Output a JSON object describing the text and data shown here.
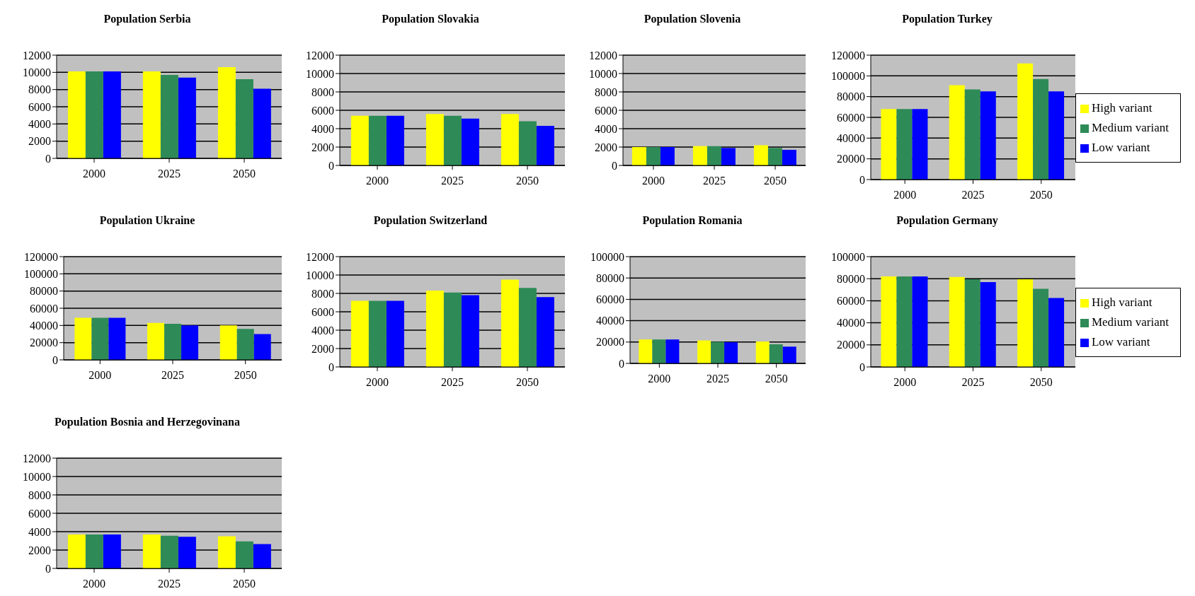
{
  "chart_data": [
    {
      "type": "bar",
      "title": "Population  Serbia",
      "categories": [
        "2000",
        "2025",
        "2050"
      ],
      "ylim": [
        0,
        12000
      ],
      "yticks": [
        0,
        2000,
        4000,
        6000,
        8000,
        10000,
        12000
      ],
      "grid": "y",
      "legend": false,
      "series": [
        {
          "color": "#ffff00",
          "values": [
            10100,
            10100,
            10600
          ]
        },
        {
          "color": "#2e8b57",
          "values": [
            10100,
            9700,
            9200
          ]
        },
        {
          "color": "#0000ff",
          "values": [
            10100,
            9400,
            8100
          ]
        }
      ]
    },
    {
      "type": "bar",
      "title": "Population  Slovakia",
      "categories": [
        "2000",
        "2025",
        "2050"
      ],
      "ylim": [
        0,
        12000
      ],
      "yticks": [
        0,
        2000,
        4000,
        6000,
        8000,
        10000,
        12000
      ],
      "grid": "y",
      "legend": false,
      "series": [
        {
          "color": "#ffff00",
          "values": [
            5400,
            5600,
            5600
          ]
        },
        {
          "color": "#2e8b57",
          "values": [
            5400,
            5400,
            4800
          ]
        },
        {
          "color": "#0000ff",
          "values": [
            5400,
            5100,
            4300
          ]
        }
      ]
    },
    {
      "type": "bar",
      "title": "Population  Slovenia",
      "categories": [
        "2000",
        "2025",
        "2050"
      ],
      "ylim": [
        0,
        12000
      ],
      "yticks": [
        0,
        2000,
        4000,
        6000,
        8000,
        10000,
        12000
      ],
      "grid": "y",
      "legend": false,
      "series": [
        {
          "color": "#ffff00",
          "values": [
            2000,
            2100,
            2200
          ]
        },
        {
          "color": "#2e8b57",
          "values": [
            2000,
            2100,
            1900
          ]
        },
        {
          "color": "#0000ff",
          "values": [
            2000,
            1900,
            1700
          ]
        }
      ]
    },
    {
      "type": "bar",
      "title": "Population  Turkey",
      "categories": [
        "2000",
        "2025",
        "2050"
      ],
      "ylim": [
        0,
        120000
      ],
      "yticks": [
        0,
        20000,
        40000,
        60000,
        80000,
        100000,
        120000
      ],
      "grid": "y",
      "legend": "right",
      "series": [
        {
          "name": "High variant",
          "color": "#ffff00",
          "values": [
            68000,
            91000,
            112000
          ]
        },
        {
          "name": "Medium variant",
          "color": "#2e8b57",
          "values": [
            68000,
            87000,
            97000
          ]
        },
        {
          "name": "Low variant",
          "color": "#0000ff",
          "values": [
            68000,
            85000,
            85000
          ]
        }
      ]
    },
    {
      "type": "bar",
      "title": "Population  Ukraine",
      "categories": [
        "2000",
        "2025",
        "2050"
      ],
      "ylim": [
        0,
        120000
      ],
      "yticks": [
        0,
        20000,
        40000,
        60000,
        80000,
        100000,
        120000
      ],
      "grid": "y",
      "legend": false,
      "series": [
        {
          "color": "#ffff00",
          "values": [
            49000,
            43000,
            40000
          ]
        },
        {
          "color": "#2e8b57",
          "values": [
            49000,
            42000,
            36000
          ]
        },
        {
          "color": "#0000ff",
          "values": [
            49000,
            40000,
            30000
          ]
        }
      ]
    },
    {
      "type": "bar",
      "title": "Population  Switzerland",
      "categories": [
        "2000",
        "2025",
        "2050"
      ],
      "ylim": [
        0,
        12000
      ],
      "yticks": [
        0,
        2000,
        4000,
        6000,
        8000,
        10000,
        12000
      ],
      "grid": "y",
      "legend": false,
      "series": [
        {
          "color": "#ffff00",
          "values": [
            7200,
            8300,
            9500
          ]
        },
        {
          "color": "#2e8b57",
          "values": [
            7200,
            8100,
            8600
          ]
        },
        {
          "color": "#0000ff",
          "values": [
            7200,
            7800,
            7600
          ]
        }
      ]
    },
    {
      "type": "bar",
      "title": "Population  Romania",
      "categories": [
        "2000",
        "2025",
        "2050"
      ],
      "ylim": [
        0,
        100000
      ],
      "yticks": [
        0,
        20000,
        40000,
        60000,
        80000,
        100000
      ],
      "grid": "y",
      "legend": false,
      "series": [
        {
          "color": "#ffff00",
          "values": [
            22400,
            21500,
            20500
          ]
        },
        {
          "color": "#2e8b57",
          "values": [
            22400,
            20200,
            17900
          ]
        },
        {
          "color": "#0000ff",
          "values": [
            22400,
            19800,
            15700
          ]
        }
      ]
    },
    {
      "type": "bar",
      "title": "Population  Germany",
      "categories": [
        "2000",
        "2025",
        "2050"
      ],
      "ylim": [
        0,
        100000
      ],
      "yticks": [
        0,
        20000,
        40000,
        60000,
        80000,
        100000
      ],
      "grid": "y",
      "legend": "right",
      "series": [
        {
          "name": "High variant",
          "color": "#ffff00",
          "values": [
            82000,
            81500,
            79500
          ]
        },
        {
          "name": "Medium variant",
          "color": "#2e8b57",
          "values": [
            82000,
            79500,
            70800
          ]
        },
        {
          "name": "Low variant",
          "color": "#0000ff",
          "values": [
            82000,
            77000,
            62500
          ]
        }
      ]
    },
    {
      "type": "bar",
      "title": "Population  Bosnia and Herzegovinana",
      "categories": [
        "2000",
        "2025",
        "2050"
      ],
      "ylim": [
        0,
        12000
      ],
      "yticks": [
        0,
        2000,
        4000,
        6000,
        8000,
        10000,
        12000
      ],
      "grid": "y",
      "legend": false,
      "series": [
        {
          "color": "#ffff00",
          "values": [
            3700,
            3700,
            3500
          ]
        },
        {
          "color": "#2e8b57",
          "values": [
            3700,
            3550,
            2950
          ]
        },
        {
          "color": "#0000ff",
          "values": [
            3700,
            3450,
            2650
          ]
        }
      ]
    }
  ]
}
